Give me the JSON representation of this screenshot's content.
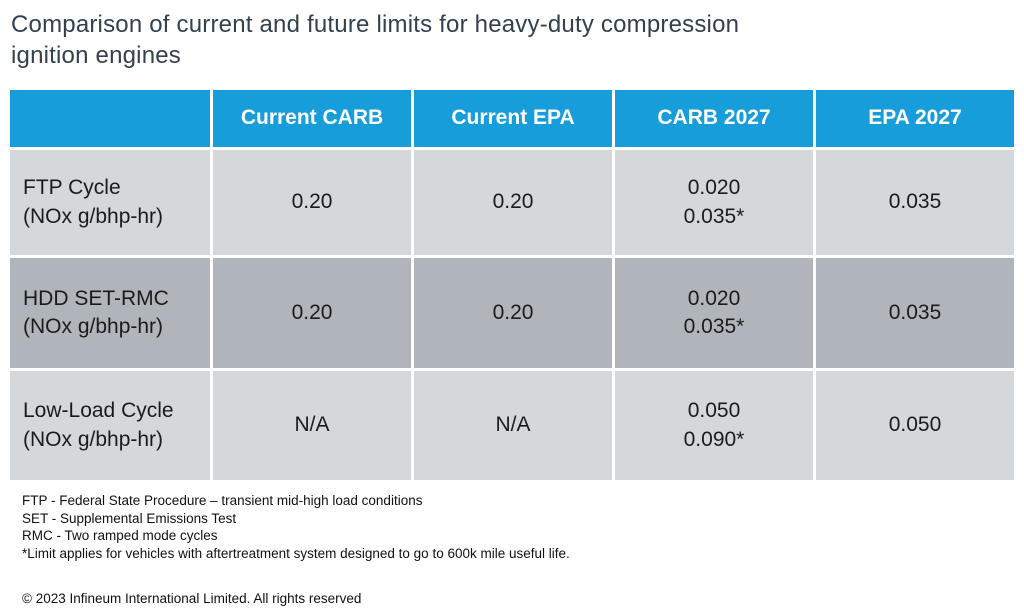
{
  "title": {
    "line1": "Comparison of current and future limits for heavy-duty compression",
    "line2": "ignition engines"
  },
  "chart_data": {
    "type": "table",
    "title": "Comparison of current and future limits for heavy-duty compression ignition engines",
    "units": "NOx g/bhp-hr",
    "columns": [
      "",
      "Current CARB",
      "Current EPA",
      "CARB 2027",
      "EPA 2027"
    ],
    "rows": [
      {
        "label": "FTP Cycle\n(NOx g/bhp-hr)",
        "values": [
          "0.20",
          "0.20",
          "0.020\n0.035*",
          "0.035"
        ]
      },
      {
        "label": "HDD SET-RMC\n(NOx g/bhp-hr)",
        "values": [
          "0.20",
          "0.20",
          "0.020\n0.035*",
          "0.035"
        ]
      },
      {
        "label": "Low-Load Cycle\n(NOx g/bhp-hr)",
        "values": [
          "N/A",
          "N/A",
          "0.050\n0.090*",
          "0.050"
        ]
      }
    ]
  },
  "footnotes": [
    "FTP - Federal State Procedure – transient mid-high load conditions",
    "SET - Supplemental Emissions Test",
    "RMC - Two ramped mode cycles",
    "*Limit applies for vehicles with aftertreatment system designed to go to 600k mile useful life."
  ],
  "copyright": "© 2023 Infineum International Limited. All rights reserved",
  "colors": {
    "header_bg": "#189DDB",
    "header_text": "#FFFFFF",
    "row_light": "#D4D8DA",
    "row_dark": "#AFB5BB",
    "title_text": "#33414E",
    "body_text": "#1B1B1B"
  }
}
